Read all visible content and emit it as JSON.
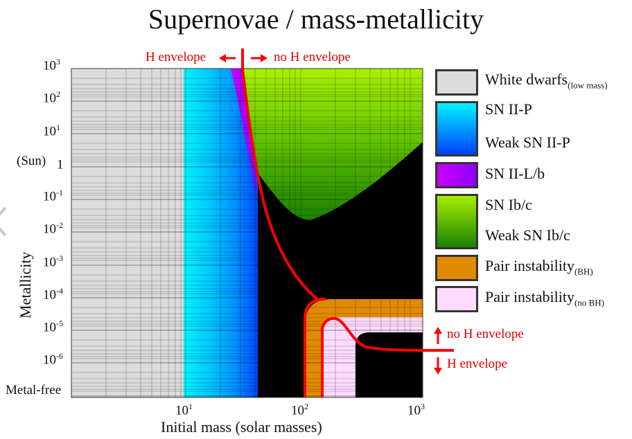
{
  "title": "Supernovae / mass-metallicity",
  "y_axis": {
    "title": "Metallicity",
    "sun_label": "(Sun)",
    "ticks": [
      {
        "base": "10",
        "exp": "3"
      },
      {
        "base": "10",
        "exp": "2"
      },
      {
        "base": "10",
        "exp": "1"
      },
      {
        "base": "1",
        "exp": ""
      },
      {
        "base": "10",
        "exp": "-1"
      },
      {
        "base": "10",
        "exp": "-2"
      },
      {
        "base": "10",
        "exp": "-3"
      },
      {
        "base": "10",
        "exp": "-4"
      },
      {
        "base": "10",
        "exp": "-5"
      },
      {
        "base": "10",
        "exp": "-6"
      }
    ],
    "metal_free": "Metal-free"
  },
  "x_axis": {
    "title": "Initial mass (solar masses)",
    "ticks": [
      {
        "base": "10",
        "exp": "1"
      },
      {
        "base": "10",
        "exp": "2"
      },
      {
        "base": "10",
        "exp": "3"
      }
    ]
  },
  "boundary_labels": {
    "h_envelope_left": "H envelope",
    "no_h_envelope_right": "no H envelope",
    "no_h_envelope_up": "no H envelope",
    "h_envelope_down": "H envelope"
  },
  "legend": [
    {
      "label": "White dwarfs",
      "sub": "(low mass)",
      "color": "#dcdcdc"
    },
    {
      "label": "SN II-P",
      "sub": "",
      "color": "#00e8ff"
    },
    {
      "label": "Weak SN II-P",
      "sub": "",
      "color": "#0040ff"
    },
    {
      "label": "SN II-L/b",
      "sub": "",
      "color": "#b000ff"
    },
    {
      "label": "SN Ib/c",
      "sub": "",
      "color": "#9adf00"
    },
    {
      "label": "Weak SN Ib/c",
      "sub": "",
      "color": "#1c8a00"
    },
    {
      "label": "Pair instability",
      "sub": "(BH)",
      "color": "#e08a00"
    },
    {
      "label": "Pair instability",
      "sub": "(no BH)",
      "color": "#ffdcff"
    }
  ],
  "colors": {
    "boundary": "#ff0000",
    "black_hole": "#000000",
    "white_dwarf": "#dcdcdc"
  }
}
